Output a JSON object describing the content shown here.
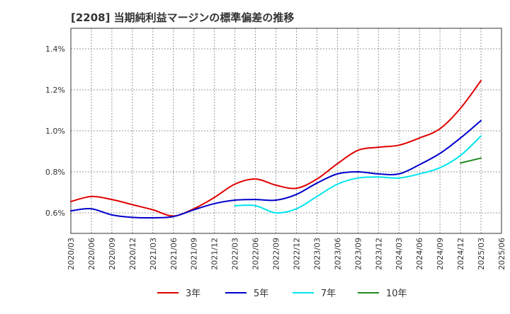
{
  "chart_data": {
    "type": "line",
    "title": "[2208]  当期純利益マージンの標準偏差の推移",
    "xlabel": "",
    "ylabel": "",
    "ylim": [
      0.5,
      1.5
    ],
    "yticks": [
      0.6,
      0.8,
      1.0,
      1.2,
      1.4
    ],
    "ytick_labels": [
      "0.6%",
      "0.8%",
      "1.0%",
      "1.2%",
      "1.4%"
    ],
    "x_start": "2020/03",
    "x_step_months": 3,
    "categories": [
      "2020/03",
      "2020/06",
      "2020/09",
      "2020/12",
      "2021/03",
      "2021/06",
      "2021/09",
      "2021/12",
      "2022/03",
      "2022/06",
      "2022/09",
      "2022/12",
      "2023/03",
      "2023/06",
      "2023/09",
      "2023/12",
      "2024/03",
      "2024/06",
      "2024/09",
      "2024/12",
      "2025/03",
      "2025/06"
    ],
    "grid": true,
    "legend_position": "bottom",
    "series": [
      {
        "name": "3年",
        "color": "#e00000",
        "x": [
          "2020/03",
          "2020/06",
          "2020/09",
          "2020/12",
          "2021/03",
          "2021/06",
          "2021/09",
          "2021/12",
          "2022/03",
          "2022/06",
          "2022/09",
          "2022/12",
          "2023/03",
          "2023/06",
          "2023/09",
          "2023/12",
          "2024/03",
          "2024/06",
          "2024/09",
          "2024/12",
          "2025/03"
        ],
        "values": [
          0.655,
          0.68,
          0.665,
          0.64,
          0.615,
          0.585,
          0.62,
          0.675,
          0.74,
          0.765,
          0.735,
          0.72,
          0.765,
          0.84,
          0.905,
          0.92,
          0.93,
          0.965,
          1.01,
          1.11,
          1.245
        ]
      },
      {
        "name": "5年",
        "color": "#0000cc",
        "x": [
          "2020/03",
          "2020/06",
          "2020/09",
          "2020/12",
          "2021/03",
          "2021/06",
          "2021/09",
          "2021/12",
          "2022/03",
          "2022/06",
          "2022/09",
          "2022/12",
          "2023/03",
          "2023/06",
          "2023/09",
          "2023/12",
          "2024/03",
          "2024/06",
          "2024/09",
          "2024/12",
          "2025/03"
        ],
        "values": [
          0.61,
          0.62,
          0.59,
          0.578,
          0.576,
          0.582,
          0.615,
          0.645,
          0.662,
          0.665,
          0.662,
          0.69,
          0.745,
          0.79,
          0.8,
          0.79,
          0.79,
          0.835,
          0.89,
          0.965,
          1.05
        ]
      },
      {
        "name": "7年",
        "color": "#00e5ee",
        "x": [
          "2022/03",
          "2022/06",
          "2022/09",
          "2022/12",
          "2023/03",
          "2023/06",
          "2023/09",
          "2023/12",
          "2024/03",
          "2024/06",
          "2024/09",
          "2024/12",
          "2025/03"
        ],
        "values": [
          0.635,
          0.635,
          0.6,
          0.62,
          0.68,
          0.74,
          0.77,
          0.775,
          0.77,
          0.79,
          0.82,
          0.88,
          0.975
        ]
      },
      {
        "name": "10年",
        "color": "#228b22",
        "x": [
          "2024/12",
          "2025/03"
        ],
        "values": [
          0.843,
          0.867
        ]
      }
    ]
  }
}
